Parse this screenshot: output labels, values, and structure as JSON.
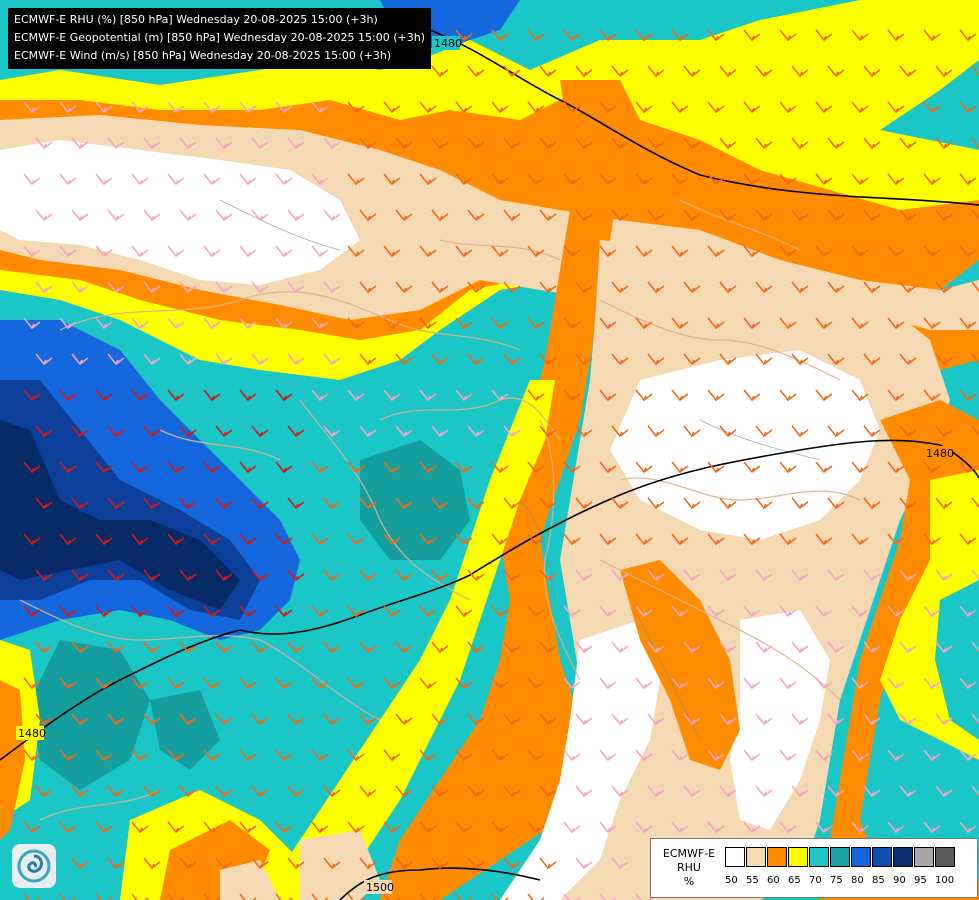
{
  "header": {
    "lines": [
      "ECMWF-E RHU (%) [850 hPa] Wednesday 20-08-2025 15:00 (+3h)",
      "ECMWF-E Geopotential (m) [850 hPa] Wednesday 20-08-2025 15:00 (+3h)",
      "ECMWF-E Wind (m/s) [850 hPa] Wednesday 20-08-2025 15:00 (+3h)"
    ]
  },
  "legend": {
    "title_line1": "ECMWF-E",
    "title_line2": "RHU",
    "title_line3": "%",
    "levels": [
      "50",
      "55",
      "60",
      "65",
      "70",
      "75",
      "80",
      "85",
      "90",
      "95",
      "100"
    ],
    "colors": [
      "#ffffff",
      "#f5d9b3",
      "#ff8c00",
      "#ffff00",
      "#20c5c5",
      "#1aa0a0",
      "#1464dc",
      "#0f4db0",
      "#082d6e",
      "#a8a8a8",
      "#5a5a5a"
    ]
  },
  "isolines": {
    "labels": [
      "1480",
      "1480",
      "1480",
      "1500"
    ]
  },
  "field_colors": {
    "white": "#ffffff",
    "tan": "#f5d9b3",
    "orange": "#ff8c00",
    "yellow": "#ffff00",
    "cyan": "#1ac6c6",
    "teal": "#159e9e",
    "blue": "#1467dc",
    "darkblue": "#0b3f9a",
    "navy": "#062a66",
    "border": "#c9a98a"
  },
  "logo": {
    "icon": "swirl-logo-icon"
  }
}
